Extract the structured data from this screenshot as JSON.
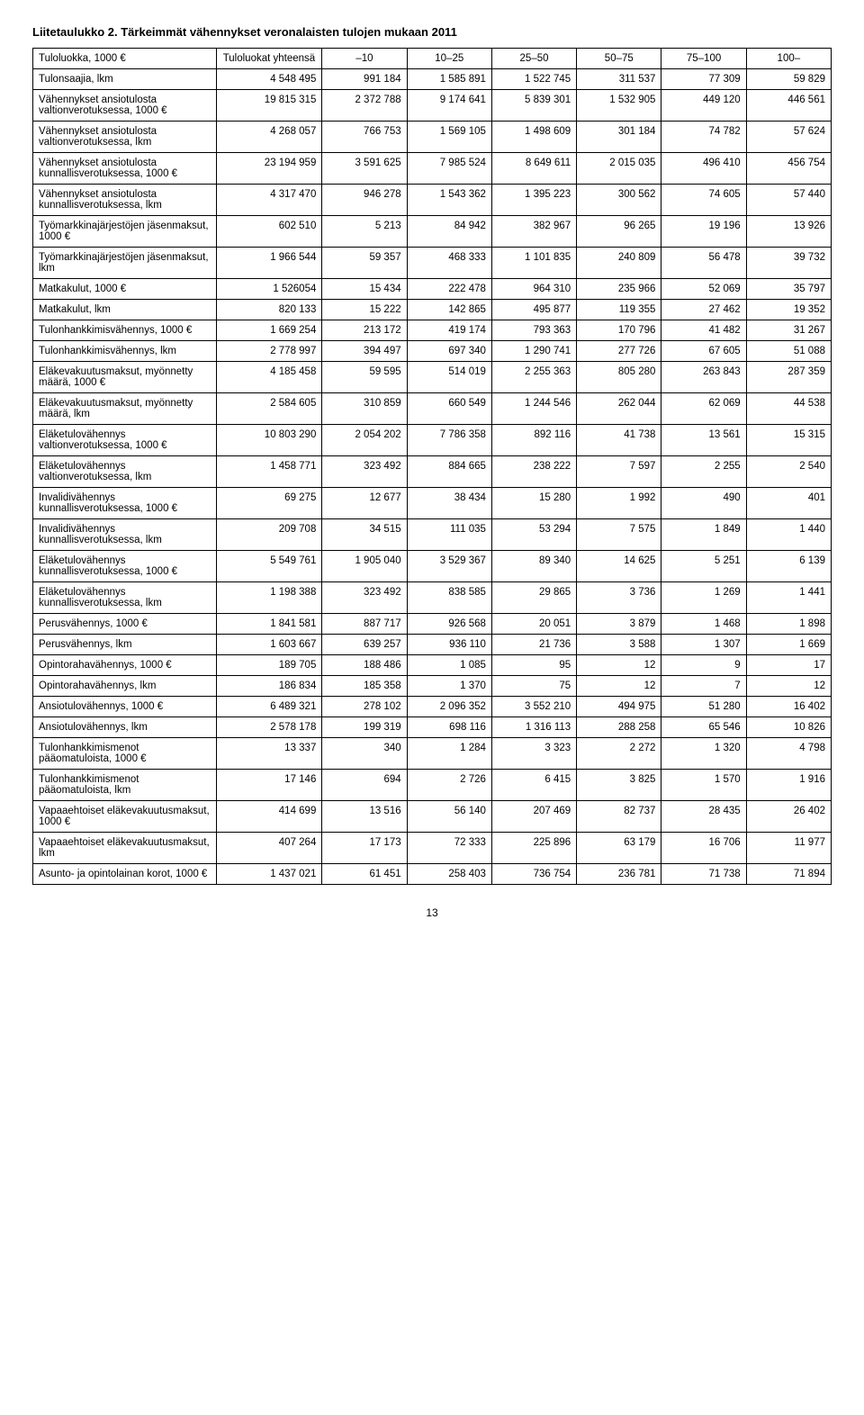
{
  "title": "Liitetaulukko 2. Tärkeimmät vähennykset veronalaisten tulojen mukaan 2011",
  "header": {
    "rowlabel": "Tuloluokka, 1000 €",
    "total": "Tuloluokat yhteensä",
    "cols": [
      "–10",
      "10–25",
      "25–50",
      "50–75",
      "75–100",
      "100–"
    ]
  },
  "rows": [
    {
      "label": "Tulonsaajia, lkm",
      "vals": [
        "4 548 495",
        "991 184",
        "1 585 891",
        "1 522 745",
        "311 537",
        "77 309",
        "59 829"
      ]
    },
    {
      "label": "Vähennykset ansiotulosta valtionverotuksessa, 1000 €",
      "vals": [
        "19 815 315",
        "2 372 788",
        "9 174 641",
        "5 839 301",
        "1 532 905",
        "449 120",
        "446 561"
      ]
    },
    {
      "label": "Vähennykset ansiotulosta valtionverotuksessa, lkm",
      "vals": [
        "4 268 057",
        "766 753",
        "1 569 105",
        "1 498 609",
        "301 184",
        "74 782",
        "57 624"
      ]
    },
    {
      "label": "Vähennykset ansiotulosta kunnallisverotuksessa, 1000 €",
      "vals": [
        "23 194 959",
        "3 591 625",
        "7 985 524",
        "8 649 611",
        "2 015 035",
        "496 410",
        "456 754"
      ]
    },
    {
      "label": "Vähennykset ansiotulosta kunnallisverotuksessa, lkm",
      "vals": [
        "4 317 470",
        "946 278",
        "1 543 362",
        "1 395 223",
        "300 562",
        "74 605",
        "57 440"
      ]
    },
    {
      "label": "Työmarkkinajärjestöjen jäsenmaksut, 1000 €",
      "vals": [
        "602 510",
        "5 213",
        "84 942",
        "382 967",
        "96 265",
        "19 196",
        "13 926"
      ]
    },
    {
      "label": "Työmarkkinajärjestöjen jäsenmaksut, lkm",
      "vals": [
        "1 966 544",
        "59 357",
        "468 333",
        "1 101 835",
        "240 809",
        "56 478",
        "39 732"
      ]
    },
    {
      "label": "Matkakulut, 1000 €",
      "vals": [
        "1 526054",
        "15 434",
        "222 478",
        "964 310",
        "235 966",
        "52 069",
        "35 797"
      ]
    },
    {
      "label": "Matkakulut, lkm",
      "vals": [
        "820 133",
        "15 222",
        "142 865",
        "495 877",
        "119 355",
        "27 462",
        "19 352"
      ]
    },
    {
      "label": "Tulonhankkimisvähennys, 1000 €",
      "vals": [
        "1 669 254",
        "213 172",
        "419 174",
        "793 363",
        "170 796",
        "41 482",
        "31 267"
      ]
    },
    {
      "label": "Tulonhankkimisvähennys, lkm",
      "vals": [
        "2 778 997",
        "394 497",
        "697 340",
        "1 290 741",
        "277 726",
        "67 605",
        "51 088"
      ]
    },
    {
      "label": "Eläkevakuutusmaksut, myönnetty määrä, 1000 €",
      "vals": [
        "4 185 458",
        "59 595",
        "514 019",
        "2 255 363",
        "805 280",
        "263 843",
        "287 359"
      ]
    },
    {
      "label": "Eläkevakuutusmaksut, myönnetty määrä, lkm",
      "vals": [
        "2 584 605",
        "310 859",
        "660 549",
        "1 244 546",
        "262 044",
        "62 069",
        "44 538"
      ]
    },
    {
      "label": "Eläketulovähennys valtionverotuksessa, 1000 €",
      "vals": [
        "10 803 290",
        "2 054 202",
        "7 786 358",
        "892 116",
        "41 738",
        "13 561",
        "15 315"
      ]
    },
    {
      "label": "Eläketulovähennys valtionverotuksessa, lkm",
      "vals": [
        "1 458 771",
        "323 492",
        "884 665",
        "238 222",
        "7 597",
        "2 255",
        "2 540"
      ]
    },
    {
      "label": "Invalidivähennys kunnallisverotuksessa, 1000 €",
      "vals": [
        "69 275",
        "12 677",
        "38 434",
        "15 280",
        "1 992",
        "490",
        "401"
      ]
    },
    {
      "label": "Invalidivähennys kunnallisverotuksessa, lkm",
      "vals": [
        "209 708",
        "34 515",
        "111 035",
        "53 294",
        "7 575",
        "1 849",
        "1 440"
      ]
    },
    {
      "label": "Eläketulovähennys kunnallisverotuksessa, 1000 €",
      "vals": [
        "5 549 761",
        "1 905 040",
        "3 529 367",
        "89 340",
        "14 625",
        "5 251",
        "6 139"
      ]
    },
    {
      "label": "Eläketulovähennys kunnallisverotuksessa, lkm",
      "vals": [
        "1 198 388",
        "323 492",
        "838 585",
        "29 865",
        "3 736",
        "1 269",
        "1 441"
      ]
    },
    {
      "label": "Perusvähennys, 1000 €",
      "vals": [
        "1 841 581",
        "887 717",
        "926 568",
        "20 051",
        "3 879",
        "1 468",
        "1 898"
      ]
    },
    {
      "label": "Perusvähennys, lkm",
      "vals": [
        "1 603 667",
        "639 257",
        "936 110",
        "21 736",
        "3 588",
        "1 307",
        "1 669"
      ]
    },
    {
      "label": "Opintorahavähennys, 1000 €",
      "vals": [
        "189 705",
        "188 486",
        "1 085",
        "95",
        "12",
        "9",
        "17"
      ]
    },
    {
      "label": "Opintorahavähennys, lkm",
      "vals": [
        "186 834",
        "185 358",
        "1 370",
        "75",
        "12",
        "7",
        "12"
      ]
    },
    {
      "label": "Ansiotulovähennys, 1000 €",
      "vals": [
        "6 489 321",
        "278 102",
        "2 096 352",
        "3 552 210",
        "494 975",
        "51 280",
        "16 402"
      ]
    },
    {
      "label": "Ansiotulovähennys, lkm",
      "vals": [
        "2 578 178",
        "199 319",
        "698 116",
        "1 316 113",
        "288 258",
        "65 546",
        "10 826"
      ]
    },
    {
      "label": "Tulonhankkimismenot pääomatuloista, 1000 €",
      "vals": [
        "13 337",
        "340",
        "1 284",
        "3 323",
        "2 272",
        "1 320",
        "4 798"
      ]
    },
    {
      "label": "Tulonhankkimismenot pääomatuloista, lkm",
      "vals": [
        "17 146",
        "694",
        "2 726",
        "6 415",
        "3 825",
        "1 570",
        "1 916"
      ]
    },
    {
      "label": "Vapaaehtoiset eläkevakuutusmaksut, 1000 €",
      "vals": [
        "414 699",
        "13 516",
        "56 140",
        "207 469",
        "82 737",
        "28 435",
        "26 402"
      ]
    },
    {
      "label": "Vapaaehtoiset eläkevakuutusmaksut, lkm",
      "vals": [
        "407 264",
        "17 173",
        "72 333",
        "225 896",
        "63 179",
        "16 706",
        "11 977"
      ]
    },
    {
      "label": "Asunto- ja opintolainan korot, 1000 €",
      "vals": [
        "1 437 021",
        "61 451",
        "258 403",
        "736 754",
        "236 781",
        "71 738",
        "71 894"
      ]
    }
  ],
  "pagenum": "13"
}
